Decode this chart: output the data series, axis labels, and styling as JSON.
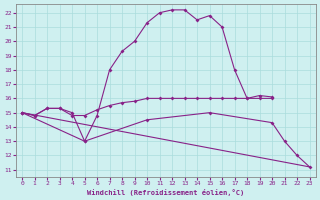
{
  "xlabel": "Windchill (Refroidissement éolien,°C)",
  "bg_color": "#cff0f0",
  "grid_color": "#aadddd",
  "line_color": "#882288",
  "spine_color": "#888888",
  "xlim": [
    -0.5,
    23.5
  ],
  "ylim": [
    10.5,
    22.6
  ],
  "yticks": [
    11,
    12,
    13,
    14,
    15,
    16,
    17,
    18,
    19,
    20,
    21,
    22
  ],
  "xticks": [
    0,
    1,
    2,
    3,
    4,
    5,
    6,
    7,
    8,
    9,
    10,
    11,
    12,
    13,
    14,
    15,
    16,
    17,
    18,
    19,
    20,
    21,
    22,
    23
  ],
  "series1_x": [
    0,
    1,
    2,
    3,
    4,
    5,
    6,
    7,
    8,
    9,
    10,
    11,
    12,
    13,
    14,
    15,
    16,
    17,
    18,
    19,
    20
  ],
  "series1_y": [
    15,
    14.8,
    15.3,
    15.3,
    15.0,
    13.0,
    14.8,
    18.0,
    19.3,
    20.0,
    21.3,
    22.0,
    22.2,
    22.2,
    21.5,
    21.8,
    21.0,
    18.0,
    16.0,
    16.2,
    16.1
  ],
  "series2_x": [
    0,
    1,
    2,
    3,
    4,
    5,
    6,
    7,
    8,
    9,
    10,
    11,
    12,
    13,
    14,
    15,
    16,
    17,
    18,
    19,
    20
  ],
  "series2_y": [
    15,
    14.8,
    15.3,
    15.3,
    14.8,
    14.8,
    15.2,
    15.5,
    15.7,
    15.8,
    16.0,
    16.0,
    16.0,
    16.0,
    16.0,
    16.0,
    16.0,
    16.0,
    16.0,
    16.0,
    16.0
  ],
  "series3_x": [
    0,
    5,
    10,
    15,
    20,
    21,
    22,
    23
  ],
  "series3_y": [
    15,
    13.0,
    14.5,
    15.0,
    14.3,
    13.0,
    12.0,
    11.2
  ],
  "series4_x": [
    0,
    23
  ],
  "series4_y": [
    15,
    11.2
  ]
}
